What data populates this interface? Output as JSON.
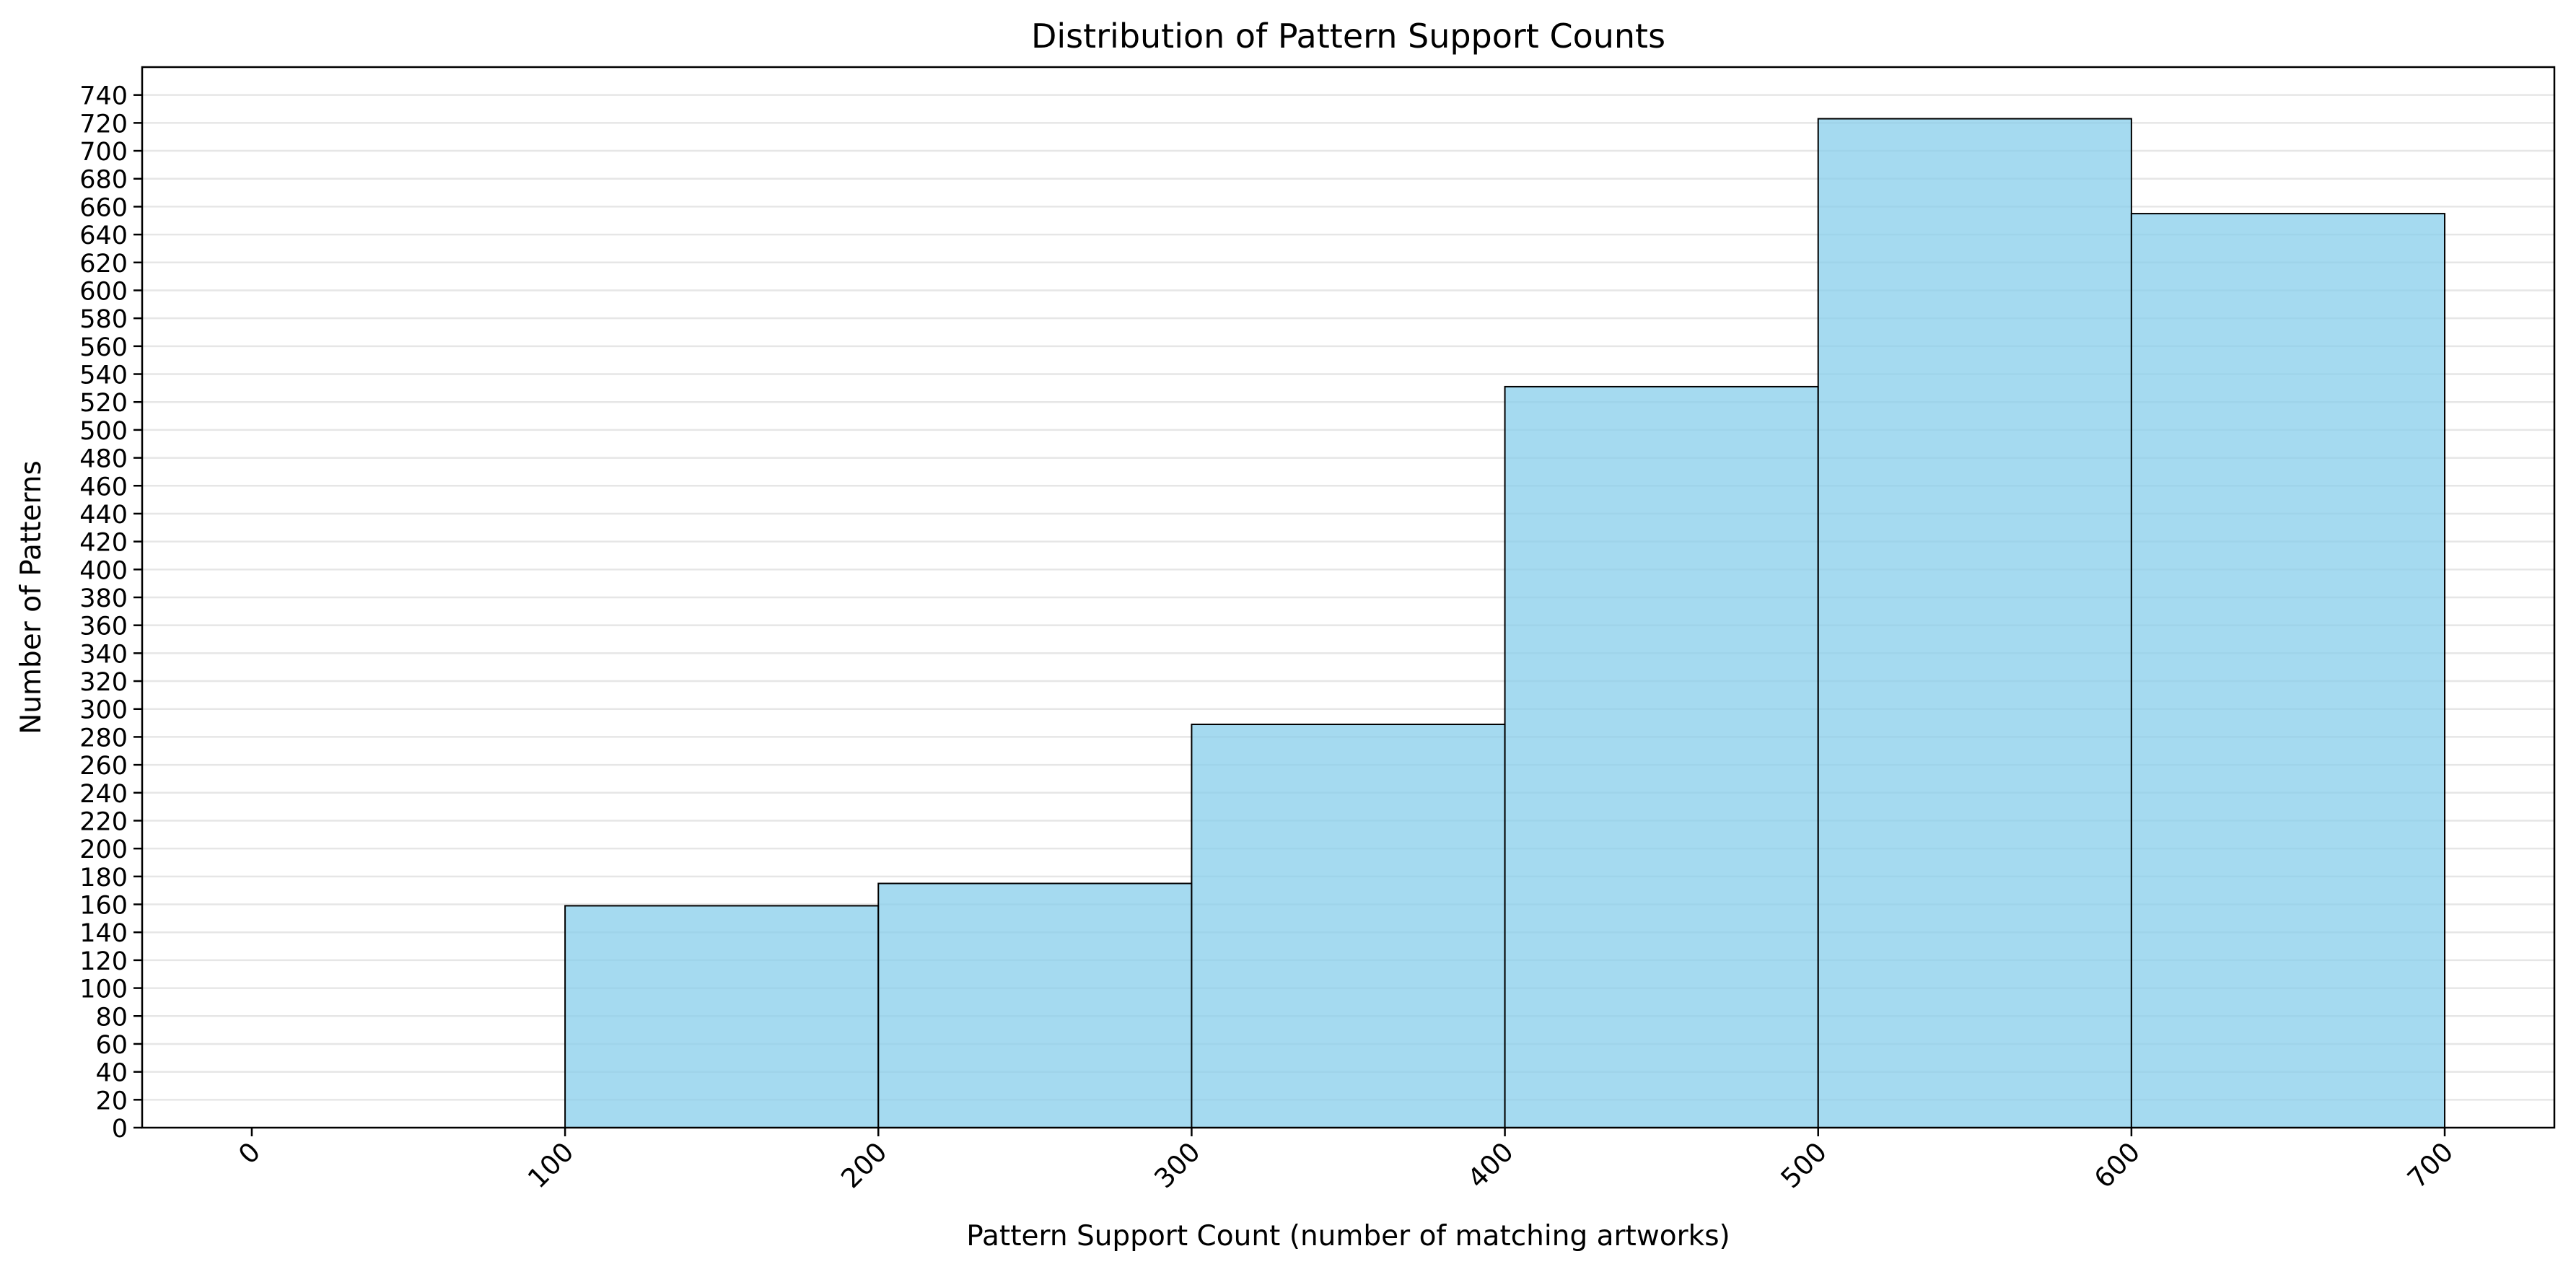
{
  "chart_data": {
    "type": "bar",
    "title": "Distribution of Pattern Support Counts",
    "xlabel": "Pattern Support Count (number of matching artworks)",
    "ylabel": "Number of Patterns",
    "bins": [
      {
        "start": 0,
        "end": 100,
        "value": 0
      },
      {
        "start": 100,
        "end": 200,
        "value": 159
      },
      {
        "start": 200,
        "end": 300,
        "value": 175
      },
      {
        "start": 300,
        "end": 400,
        "value": 289
      },
      {
        "start": 400,
        "end": 500,
        "value": 531
      },
      {
        "start": 500,
        "end": 600,
        "value": 723
      },
      {
        "start": 600,
        "end": 700,
        "value": 655
      }
    ],
    "xlim": [
      -35,
      735
    ],
    "ylim": [
      0,
      760
    ],
    "x_ticks": [
      0,
      100,
      200,
      300,
      400,
      500,
      600,
      700
    ],
    "x_tick_rotation": 45,
    "y_tick_step": 20,
    "y_tick_max": 740,
    "grid": "horizontal",
    "bar_fill": "#87CEEB",
    "bar_edge": "#000000",
    "grid_color": "#e6e6e6"
  }
}
